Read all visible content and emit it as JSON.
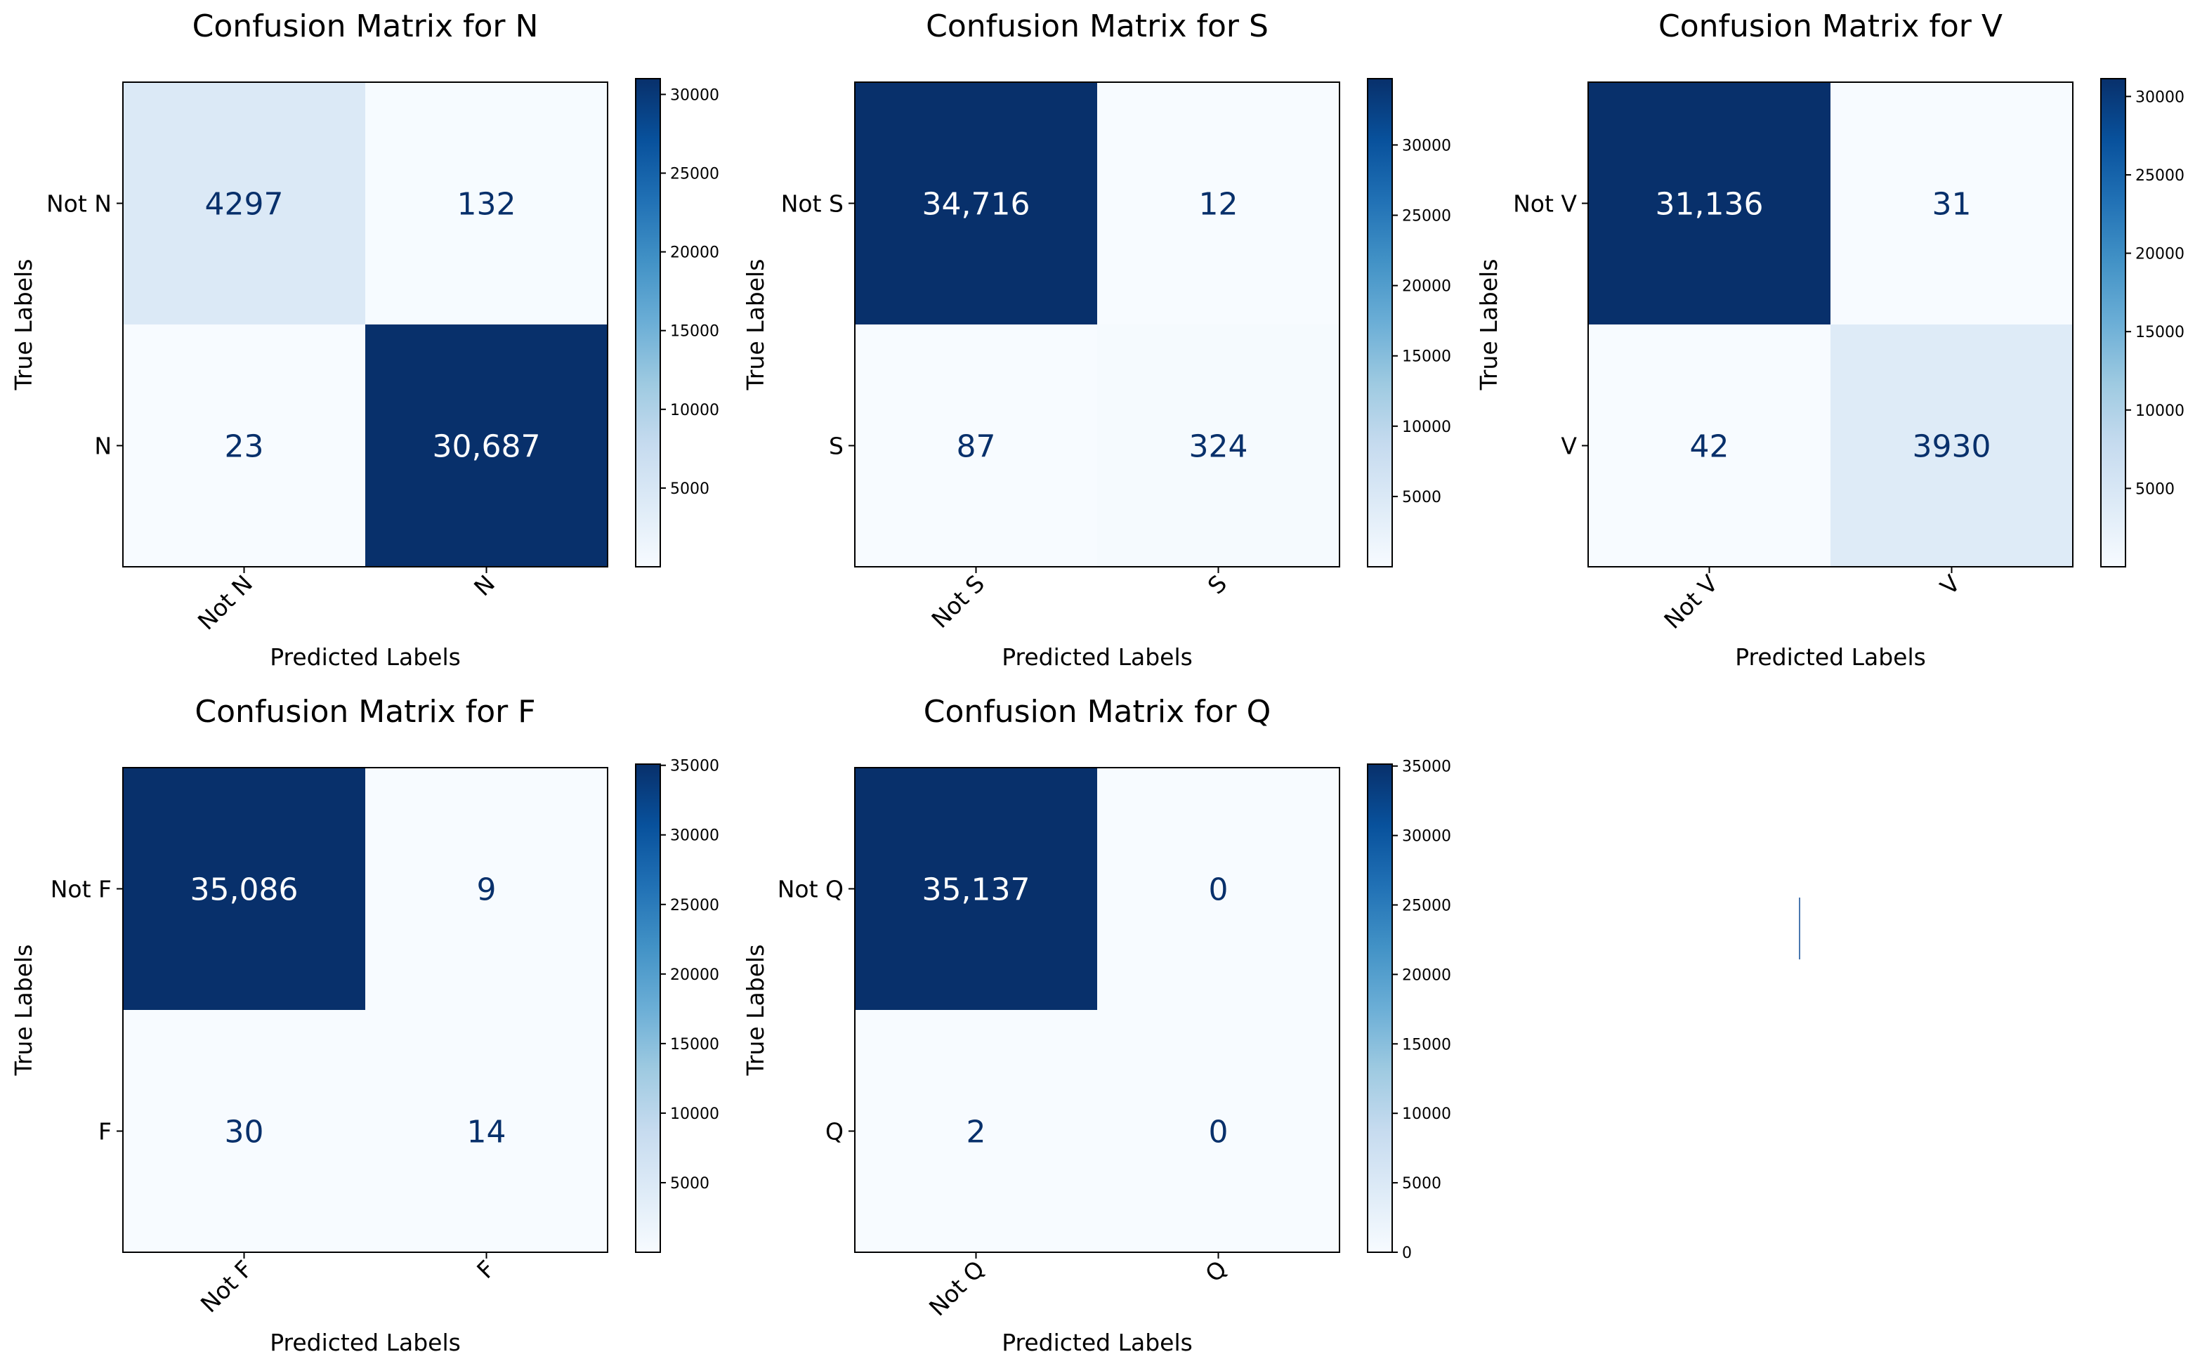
{
  "chart_data": [
    {
      "type": "heatmap",
      "title": "Confusion Matrix for N",
      "xlabel": "Predicted Labels",
      "ylabel": "True Labels",
      "x_categories": [
        "Not N",
        "N"
      ],
      "y_categories": [
        "Not N",
        "N"
      ],
      "values": [
        [
          4297,
          132
        ],
        [
          23,
          30687
        ]
      ],
      "cell_labels": [
        [
          "4297",
          "132"
        ],
        [
          "23",
          "30,687"
        ]
      ],
      "colorbar": {
        "range": [
          0,
          31000
        ],
        "ticks": [
          5000,
          10000,
          15000,
          20000,
          25000,
          30000
        ],
        "colormap": "Blues"
      }
    },
    {
      "type": "heatmap",
      "title": "Confusion Matrix for S",
      "xlabel": "Predicted Labels",
      "ylabel": "True Labels",
      "x_categories": [
        "Not S",
        "S"
      ],
      "y_categories": [
        "Not S",
        "S"
      ],
      "values": [
        [
          34716,
          12
        ],
        [
          87,
          324
        ]
      ],
      "cell_labels": [
        [
          "34,716",
          "12"
        ],
        [
          "87",
          "324"
        ]
      ],
      "colorbar": {
        "range": [
          0,
          34716
        ],
        "ticks": [
          5000,
          10000,
          15000,
          20000,
          25000,
          30000
        ],
        "colormap": "Blues"
      }
    },
    {
      "type": "heatmap",
      "title": "Confusion Matrix for V",
      "xlabel": "Predicted Labels",
      "ylabel": "True Labels",
      "x_categories": [
        "Not V",
        "V"
      ],
      "y_categories": [
        "Not V",
        "V"
      ],
      "values": [
        [
          31136,
          31
        ],
        [
          42,
          3930
        ]
      ],
      "cell_labels": [
        [
          "31,136",
          "31"
        ],
        [
          "42",
          "3930"
        ]
      ],
      "colorbar": {
        "range": [
          0,
          31136
        ],
        "ticks": [
          5000,
          10000,
          15000,
          20000,
          25000,
          30000
        ],
        "colormap": "Blues"
      }
    },
    {
      "type": "heatmap",
      "title": "Confusion Matrix for F",
      "xlabel": "Predicted Labels",
      "ylabel": "True Labels",
      "x_categories": [
        "Not F",
        "F"
      ],
      "y_categories": [
        "Not F",
        "F"
      ],
      "values": [
        [
          35086,
          9
        ],
        [
          30,
          14
        ]
      ],
      "cell_labels": [
        [
          "35,086",
          "9"
        ],
        [
          "30",
          "14"
        ]
      ],
      "colorbar": {
        "range": [
          0,
          35086
        ],
        "ticks": [
          5000,
          10000,
          15000,
          20000,
          25000,
          30000,
          35000
        ],
        "colormap": "Blues"
      }
    },
    {
      "type": "heatmap",
      "title": "Confusion Matrix for Q",
      "xlabel": "Predicted Labels",
      "ylabel": "True Labels",
      "x_categories": [
        "Not Q",
        "Q"
      ],
      "y_categories": [
        "Not Q",
        "Q"
      ],
      "values": [
        [
          35137,
          0
        ],
        [
          2,
          0
        ]
      ],
      "cell_labels": [
        [
          "35,137",
          "0"
        ],
        [
          "2",
          "0"
        ]
      ],
      "colorbar": {
        "range": [
          0,
          35137
        ],
        "ticks": [
          0,
          5000,
          10000,
          15000,
          20000,
          25000,
          30000,
          35000
        ],
        "colormap": "Blues"
      }
    }
  ]
}
